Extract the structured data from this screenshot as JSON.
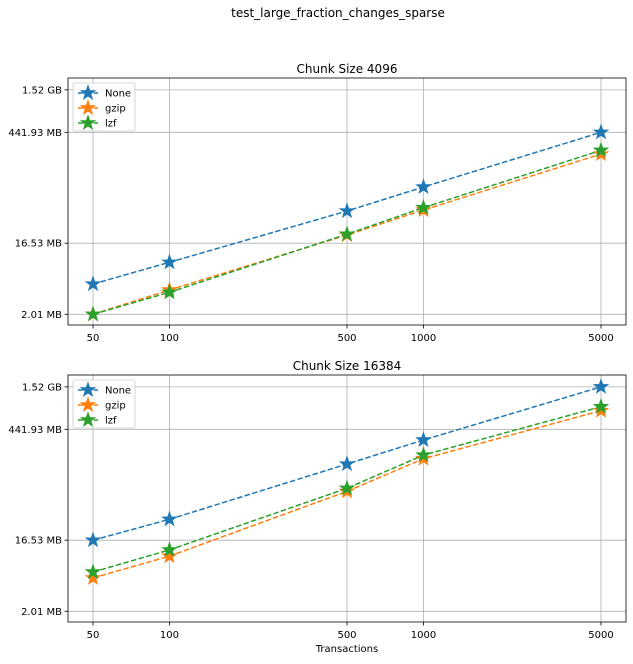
{
  "suptitle": "test_large_fraction_changes_sparse",
  "chart_data": [
    {
      "type": "line",
      "title": "Chunk Size 4096",
      "xlabel": "",
      "ylabel": "",
      "xscale": "log",
      "yscale": "log",
      "x": [
        50,
        100,
        500,
        1000,
        5000
      ],
      "xticks": [
        "50",
        "100",
        "500",
        "1000",
        "5000"
      ],
      "yticks": [
        {
          "label": "2.01 MB",
          "value_mb": 2.01
        },
        {
          "label": "16.53 MB",
          "value_mb": 16.53
        },
        {
          "label": "441.93 MB",
          "value_mb": 441.93
        },
        {
          "label": "1.52 GB",
          "value_mb": 1556
        }
      ],
      "y_unit": "MB",
      "grid": true,
      "legend": "upper-left",
      "series": [
        {
          "name": "None",
          "color": "#1f77b4",
          "marker": "star",
          "linestyle": "dashed",
          "values": [
            4.93,
            9.39,
            42.9,
            87.4,
            441.93
          ]
        },
        {
          "name": "gzip",
          "color": "#ff7f0e",
          "marker": "star",
          "linestyle": "dashed",
          "values": [
            2.01,
            4.13,
            21.1,
            44.2,
            232
          ]
        },
        {
          "name": "lzf",
          "color": "#2ca02c",
          "marker": "star",
          "linestyle": "dashed",
          "values": [
            2.01,
            3.86,
            21.6,
            47.4,
            259
          ]
        }
      ]
    },
    {
      "type": "line",
      "title": "Chunk Size 16384",
      "xlabel": "Transactions",
      "ylabel": "",
      "xscale": "log",
      "yscale": "log",
      "x": [
        50,
        100,
        500,
        1000,
        5000
      ],
      "xticks": [
        "50",
        "100",
        "500",
        "1000",
        "5000"
      ],
      "yticks": [
        {
          "label": "2.01 MB",
          "value_mb": 2.01
        },
        {
          "label": "16.53 MB",
          "value_mb": 16.53
        },
        {
          "label": "441.93 MB",
          "value_mb": 441.93
        },
        {
          "label": "1.52 GB",
          "value_mb": 1556
        }
      ],
      "y_unit": "MB",
      "grid": true,
      "legend": "upper-left",
      "series": [
        {
          "name": "None",
          "color": "#1f77b4",
          "marker": "star",
          "linestyle": "dashed",
          "values": [
            16.53,
            30.7,
            158,
            322,
            1556
          ]
        },
        {
          "name": "gzip",
          "color": "#ff7f0e",
          "marker": "star",
          "linestyle": "dashed",
          "values": [
            5.4,
            10.3,
            70.4,
            185,
            768
          ]
        },
        {
          "name": "lzf",
          "color": "#2ca02c",
          "marker": "star",
          "linestyle": "dashed",
          "values": [
            6.44,
            12.4,
            77,
            206,
            864
          ]
        }
      ]
    }
  ]
}
